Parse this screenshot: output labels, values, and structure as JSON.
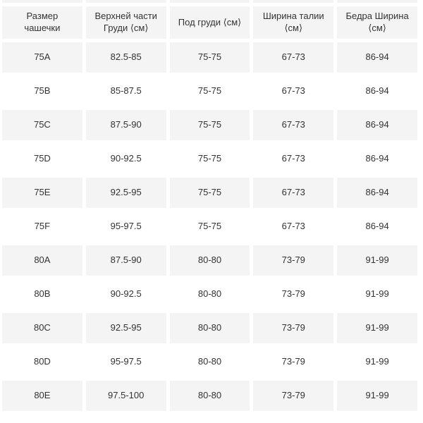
{
  "table": {
    "columns": [
      {
        "label": "Размер\nчашечки"
      },
      {
        "label": "Верхней части\nГруди ⟨см⟩"
      },
      {
        "label": "Под груди ⟨см⟩"
      },
      {
        "label": "Ширина талии ⟨см⟩"
      },
      {
        "label": "Бедра Ширина ⟨см⟩"
      }
    ],
    "rows": [
      {
        "cells": [
          "75A",
          "82.5-85",
          "75-75",
          "67-73",
          "86-94"
        ]
      },
      {
        "cells": [
          "75B",
          "85-87.5",
          "75-75",
          "67-73",
          "86-94"
        ]
      },
      {
        "cells": [
          "75C",
          "87.5-90",
          "75-75",
          "67-73",
          "86-94"
        ]
      },
      {
        "cells": [
          "75D",
          "90-92.5",
          "75-75",
          "67-73",
          "86-94"
        ]
      },
      {
        "cells": [
          "75E",
          "92.5-95",
          "75-75",
          "67-73",
          "86-94"
        ]
      },
      {
        "cells": [
          "75F",
          "95-97.5",
          "75-75",
          "67-73",
          "86-94"
        ]
      },
      {
        "cells": [
          "80A",
          "87.5-90",
          "80-80",
          "73-79",
          "91-99"
        ]
      },
      {
        "cells": [
          "80B",
          "90-92.5",
          "80-80",
          "73-79",
          "91-99"
        ]
      },
      {
        "cells": [
          "80C",
          "92.5-95",
          "80-80",
          "73-79",
          "91-99"
        ]
      },
      {
        "cells": [
          "80D",
          "95-97.5",
          "80-80",
          "73-79",
          "91-99"
        ]
      },
      {
        "cells": [
          "80E",
          "97.5-100",
          "80-80",
          "73-79",
          "91-99"
        ]
      }
    ]
  },
  "colors": {
    "row_shade": "#f4f4f4",
    "row_plain": "#ffffff",
    "text": "#333333"
  }
}
